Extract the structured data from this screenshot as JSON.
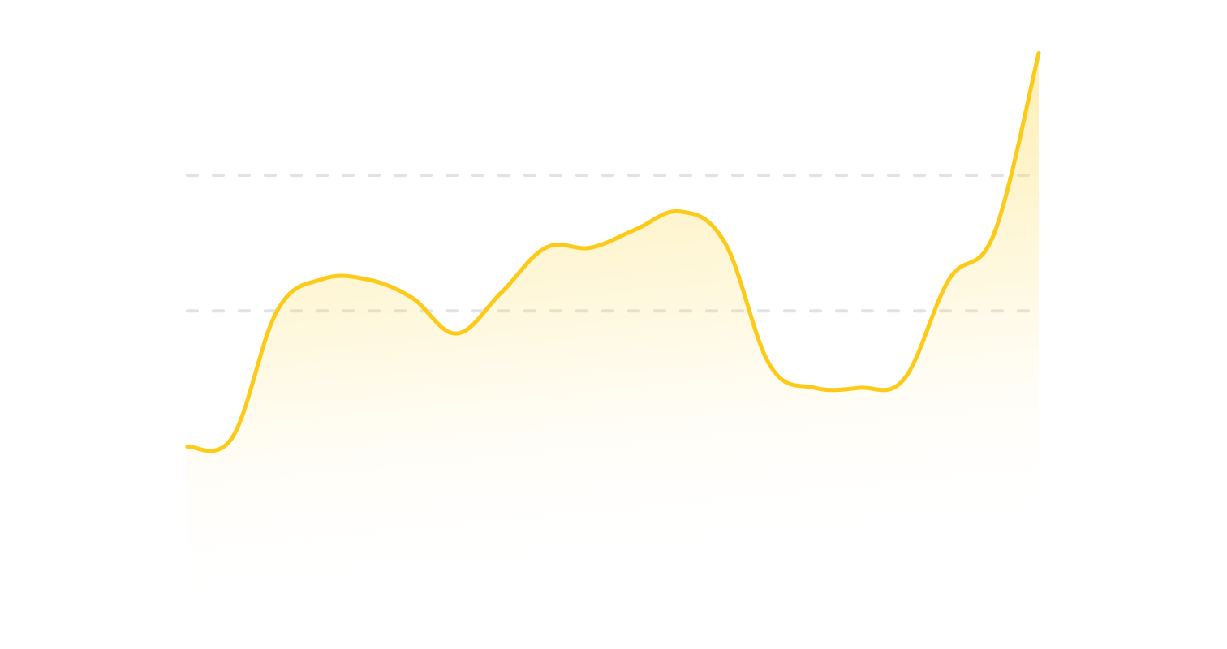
{
  "chart_data": {
    "type": "area",
    "title": "",
    "xlabel": "",
    "ylabel": "",
    "x": [
      0,
      1,
      2,
      3,
      4,
      5,
      6,
      7,
      8,
      9,
      10,
      11,
      12,
      13,
      14,
      15,
      16,
      17,
      18,
      19
    ],
    "series": [
      {
        "values": [
          20,
          22,
          50,
          57,
          57,
          53,
          45,
          54,
          64,
          64,
          68,
          72,
          65,
          38,
          33,
          33,
          35,
          57,
          67,
          107
        ]
      }
    ],
    "ylim": [
      -14,
      108
    ],
    "reference_lines": [
      50,
      80
    ],
    "grid": false,
    "legend": "none",
    "line_color": "#FCCA18",
    "fill_color_top": "#FDDB5A",
    "fill_color_bottom": "#FFFFFF",
    "gridline_color": "#E2E2E2"
  }
}
